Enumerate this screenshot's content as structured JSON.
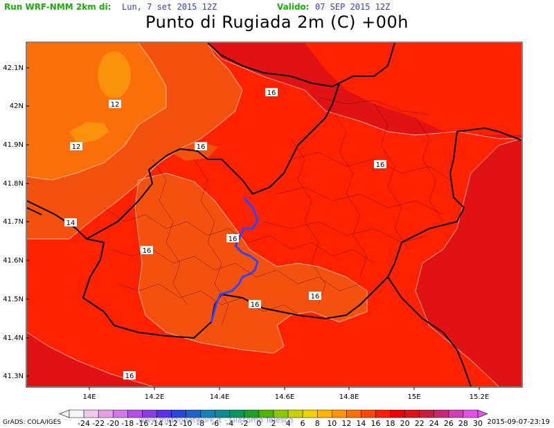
{
  "header": {
    "run_label": "Run WRF-NMM 2km di:",
    "run_date": "Lun, 7 set 2015 12Z",
    "valid_label": "Valido:",
    "valid_date": "07 SEP 2015 12Z",
    "title": "Punto di Rugiada 2m (C) +00h"
  },
  "axes": {
    "lat_labels": [
      "42.1N",
      "42N",
      "41.9N",
      "41.8N",
      "41.7N",
      "41.6N",
      "41.5N",
      "41.4N",
      "41.3N"
    ],
    "lon_labels": [
      "14E",
      "14.2E",
      "14.4E",
      "14.6E",
      "14.8E",
      "15E",
      "15.2E"
    ]
  },
  "contour_labels": [
    "12",
    "12",
    "16",
    "16",
    "14",
    "16",
    "16",
    "16",
    "16",
    "16",
    "16"
  ],
  "colorbar": {
    "values": [
      "-24",
      "-22",
      "-20",
      "-18",
      "-16",
      "-14",
      "-12",
      "-10",
      "-8",
      "-6",
      "-4",
      "-2",
      "0",
      "2",
      "4",
      "6",
      "8",
      "10",
      "12",
      "14",
      "16",
      "18",
      "20",
      "22",
      "24",
      "26",
      "28",
      "30"
    ],
    "colors": [
      "#f5f5f5",
      "#f0c8f0",
      "#e6a0e6",
      "#d278e6",
      "#b450e6",
      "#8c3ce6",
      "#5a32e6",
      "#2846dc",
      "#1e64c8",
      "#1482b4",
      "#0a8c96",
      "#08965a",
      "#1ea028",
      "#50b400",
      "#8cc800",
      "#c8d200",
      "#f0d200",
      "#ffb400",
      "#ff9600",
      "#ff6e00",
      "#ff4600",
      "#ff1e00",
      "#f00000",
      "#dc1414",
      "#c81e3c",
      "#c8286e",
      "#d23cb4",
      "#e650e6"
    ]
  },
  "footer": {
    "grads": "GrADS: COLA/IGES",
    "watermark": "www.meteonetwork.it - Giacomo Telesco",
    "timestamp": "2015-09-07-23:19"
  },
  "colors": {
    "field_16": "#ff2a00",
    "field_14": "#fa4f0f",
    "field_12": "#fb6a0a",
    "field_10": "#fb8a0a",
    "field_18": "#e6181b"
  }
}
